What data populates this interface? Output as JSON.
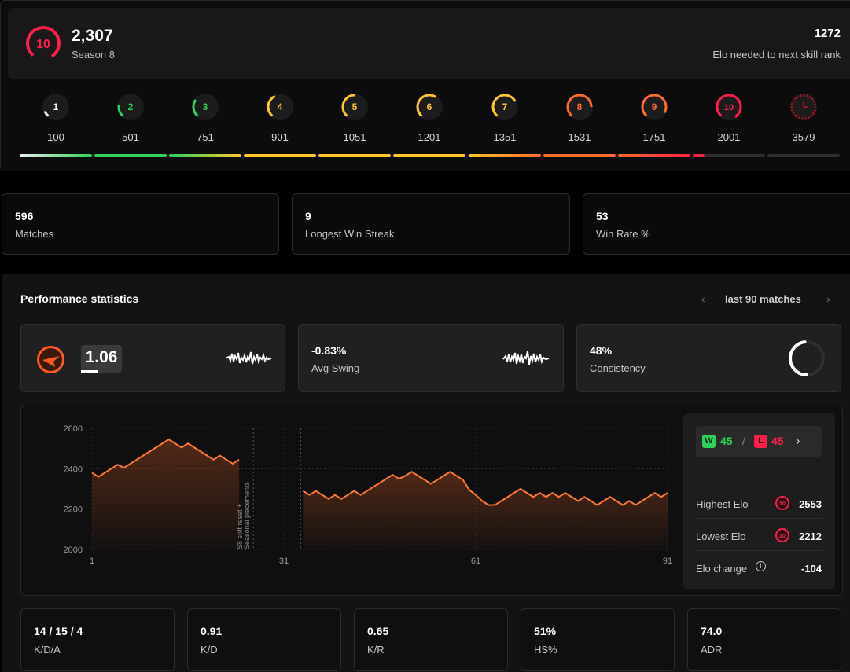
{
  "header": {
    "elo": "2,307",
    "season": "Season 8",
    "current_level": "10",
    "elo_needed_value": "1272",
    "elo_needed_label": "Elo needed to next skill rank"
  },
  "levels": [
    {
      "level": "1",
      "threshold": "100",
      "color": "#ededed"
    },
    {
      "level": "2",
      "threshold": "501",
      "color": "#2ed15a"
    },
    {
      "level": "3",
      "threshold": "751",
      "color": "#2ed15a"
    },
    {
      "level": "4",
      "threshold": "901",
      "color": "#fdc72d"
    },
    {
      "level": "5",
      "threshold": "1051",
      "color": "#fdc72d"
    },
    {
      "level": "6",
      "threshold": "1201",
      "color": "#fdc72d"
    },
    {
      "level": "7",
      "threshold": "1351",
      "color": "#fdc72d"
    },
    {
      "level": "8",
      "threshold": "1531",
      "color": "#ff6b2c"
    },
    {
      "level": "9",
      "threshold": "1751",
      "color": "#ff6b2c"
    },
    {
      "level": "10",
      "threshold": "2001",
      "color": "#fe1f48"
    },
    {
      "level": "",
      "threshold": "3579",
      "color": "#a3101f"
    }
  ],
  "stats": [
    {
      "value": "596",
      "label": "Matches"
    },
    {
      "value": "9",
      "label": "Longest Win Streak"
    },
    {
      "value": "53",
      "label": "Win Rate %"
    }
  ],
  "performance": {
    "title": "Performance statistics",
    "range_label": "last 90 matches",
    "kd_ratio_value": "1.06",
    "avg_swing_value": "-0.83%",
    "avg_swing_label": "Avg Swing",
    "consistency_value": "48%",
    "consistency_label": "Consistency",
    "consistency_fraction": 0.48,
    "wins": "45",
    "losses": "45",
    "win_tag": "W",
    "loss_tag": "L",
    "wl_separator": "/",
    "highest_elo_label": "Highest Elo",
    "highest_elo": "2553",
    "lowest_elo_label": "Lowest Elo",
    "lowest_elo": "2212",
    "elo_change_label": "Elo change",
    "elo_change": "-104",
    "annotation": [
      "S8 soft reset +",
      "Seasonal placements"
    ]
  },
  "chart_data": {
    "type": "line",
    "ylim": [
      2000,
      2600
    ],
    "y_ticks": [
      2600,
      2400,
      2200,
      2000
    ],
    "xlim": [
      1,
      91
    ],
    "x_ticks": [
      1,
      31,
      61,
      91
    ],
    "grid": true,
    "gap_after": 24,
    "annotation_match": 25,
    "series": [
      {
        "x": [
          1,
          2,
          3,
          4,
          5,
          6,
          7,
          8,
          9,
          10,
          11,
          12,
          13,
          14,
          15,
          16,
          17,
          18,
          19,
          20,
          21,
          22,
          23,
          24,
          34,
          35,
          36,
          37,
          38,
          39,
          40,
          41,
          42,
          43,
          44,
          45,
          46,
          47,
          48,
          49,
          50,
          51,
          52,
          53,
          54,
          55,
          56,
          57,
          58,
          59,
          60,
          61,
          62,
          63,
          64,
          65,
          66,
          67,
          68,
          69,
          70,
          71,
          72,
          73,
          74,
          75,
          76,
          77,
          78,
          79,
          80,
          81,
          82,
          83,
          84,
          85,
          86,
          87,
          88,
          89,
          90,
          91
        ],
        "values": [
          2380,
          2360,
          2380,
          2400,
          2420,
          2405,
          2425,
          2445,
          2465,
          2485,
          2505,
          2525,
          2545,
          2525,
          2505,
          2525,
          2505,
          2485,
          2465,
          2445,
          2465,
          2445,
          2425,
          2445,
          2290,
          2270,
          2290,
          2270,
          2250,
          2270,
          2250,
          2270,
          2290,
          2270,
          2290,
          2310,
          2330,
          2350,
          2370,
          2350,
          2365,
          2385,
          2365,
          2345,
          2325,
          2345,
          2365,
          2385,
          2365,
          2345,
          2295,
          2270,
          2240,
          2220,
          2220,
          2240,
          2260,
          2280,
          2300,
          2280,
          2260,
          2280,
          2260,
          2280,
          2260,
          2280,
          2260,
          2240,
          2260,
          2240,
          2220,
          2240,
          2260,
          2240,
          2220,
          2240,
          2220,
          2240,
          2260,
          2280,
          2260,
          2280
        ]
      }
    ]
  },
  "bottom_stats": [
    {
      "value": "14 / 15 / 4",
      "label": "K/D/A"
    },
    {
      "value": "0.91",
      "label": "K/D"
    },
    {
      "value": "0.65",
      "label": "K/R"
    },
    {
      "value": "51%",
      "label": "HS%"
    },
    {
      "value": "74.0",
      "label": "ADR"
    }
  ]
}
